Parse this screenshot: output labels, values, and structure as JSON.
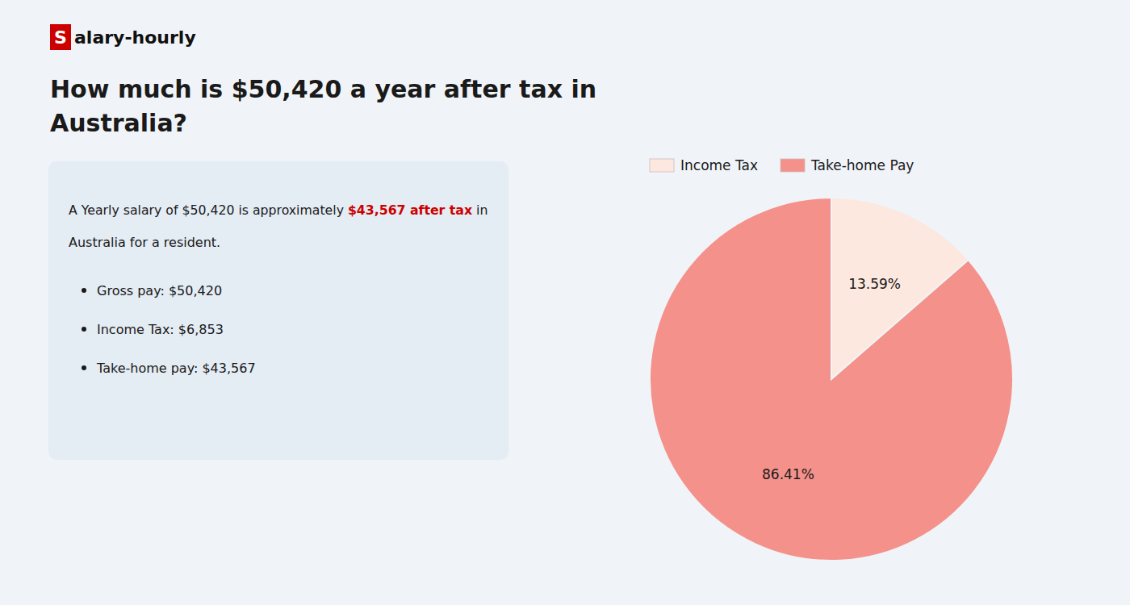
{
  "chart_data": {
    "type": "pie",
    "title": [
      "How much is $50,420 a year after tax in",
      "Australia?"
    ],
    "annotations": [
      [
        {
          "text": "S",
          "color": "#cc0000"
        },
        {
          "text": "alary-hourly"
        }
      ],
      [
        {
          "text": "A Yearly salary of $50,420 is approximately "
        },
        {
          "text": "$43,567 after tax",
          "color": "#cc0000"
        },
        {
          "text": " in"
        }
      ],
      [
        {
          "text": "Australia for a resident."
        }
      ],
      [
        {
          "text": "Gross pay: $50,420"
        }
      ],
      [
        {
          "text": "Income Tax: $6,853"
        }
      ],
      [
        {
          "text": "Take-home pay: $43,567"
        }
      ]
    ],
    "categories": [
      "Income Tax",
      "Take-home Pay"
    ],
    "values": [
      13.59,
      86.41
    ],
    "value_labels": [
      "13.59%",
      "86.41%"
    ],
    "colors": [
      "#fce8df",
      "#f4918a"
    ],
    "data_labels": true,
    "legend": "top"
  }
}
